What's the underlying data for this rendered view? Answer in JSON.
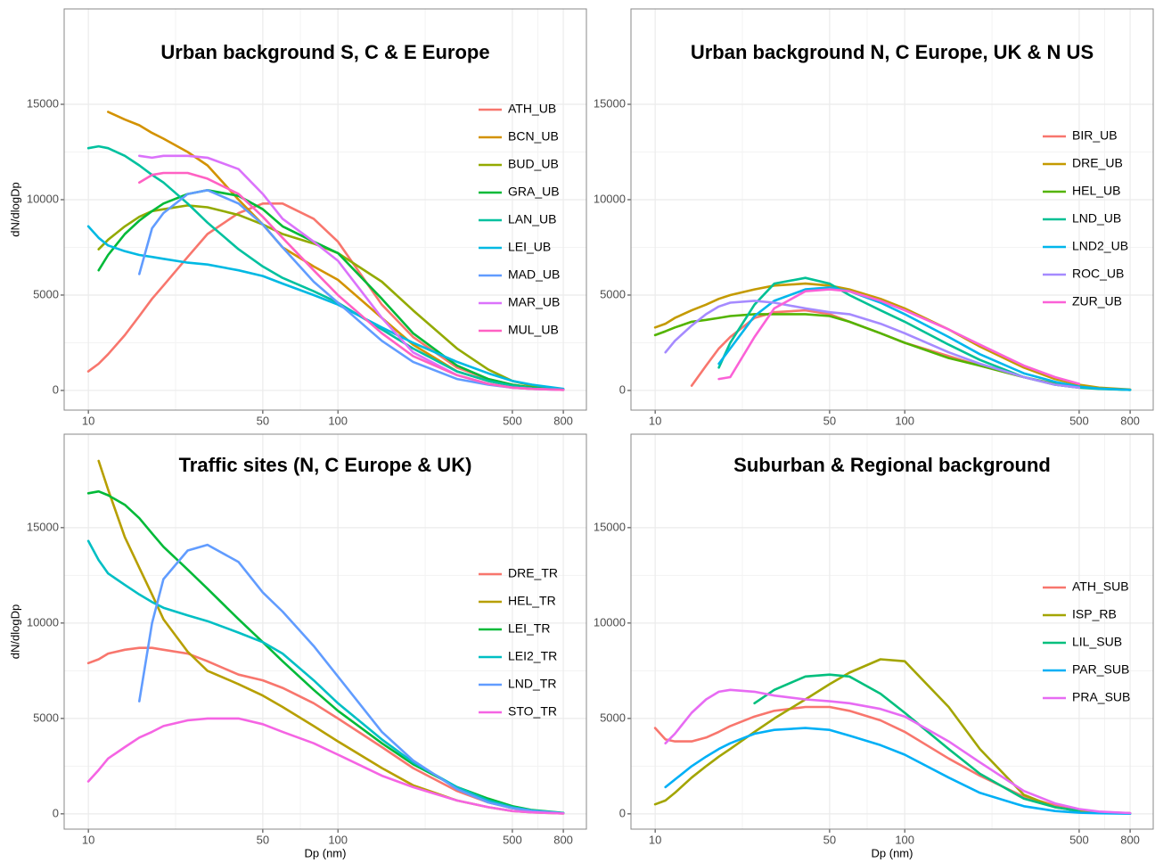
{
  "chart_data": [
    {
      "type": "line",
      "title": "Urban background S, C & E Europe",
      "y_label": "dN/dlogDp",
      "log_x": true,
      "grid": true,
      "legend": "right",
      "xlim": [
        8,
        990
      ],
      "ylim": [
        -1030,
        20000
      ],
      "xticks": [
        10,
        50,
        100,
        500,
        800
      ],
      "yticks": [
        0,
        5000,
        10000,
        15000
      ],
      "x": [
        10,
        11,
        12,
        14,
        16,
        18,
        20,
        25,
        30,
        40,
        50,
        60,
        80,
        100,
        150,
        200,
        300,
        400,
        500,
        600,
        800
      ],
      "series": [
        {
          "name": "ATH_UB",
          "color": "#F8766D",
          "values": [
            1000,
            1400,
            1900,
            2900,
            3900,
            4800,
            5500,
            7000,
            8200,
            9300,
            9800,
            9800,
            9000,
            7800,
            4500,
            2800,
            1200,
            600,
            300,
            150,
            50
          ]
        },
        {
          "name": "BCN_UB",
          "color": "#D39200",
          "values": [
            null,
            null,
            14600,
            14200,
            13900,
            13500,
            13200,
            12500,
            11800,
            10000,
            8700,
            7500,
            6500,
            5800,
            3800,
            2400,
            1000,
            500,
            250,
            120,
            40
          ]
        },
        {
          "name": "BUD_UB",
          "color": "#93AA00",
          "values": [
            null,
            7400,
            7900,
            8600,
            9100,
            9400,
            9500,
            9700,
            9600,
            9200,
            8700,
            8200,
            7700,
            7200,
            5700,
            4200,
            2200,
            1100,
            500,
            250,
            60
          ]
        },
        {
          "name": "GRA_UB",
          "color": "#00BA38",
          "values": [
            null,
            6300,
            7100,
            8200,
            8900,
            9400,
            9800,
            10300,
            10500,
            10200,
            9500,
            8600,
            7800,
            7200,
            4800,
            3000,
            1300,
            600,
            300,
            150,
            40
          ]
        },
        {
          "name": "LAN_UB",
          "color": "#00C19F",
          "values": [
            12700,
            12800,
            12700,
            12300,
            11800,
            11300,
            10900,
            9800,
            8800,
            7400,
            6500,
            5900,
            5200,
            4600,
            3200,
            2200,
            1000,
            500,
            250,
            120,
            40
          ]
        },
        {
          "name": "LEI_UB",
          "color": "#00B9E3",
          "values": [
            8600,
            8000,
            7600,
            7300,
            7100,
            7000,
            6900,
            6700,
            6600,
            6300,
            6000,
            5600,
            5000,
            4500,
            3300,
            2500,
            1500,
            900,
            500,
            300,
            80
          ]
        },
        {
          "name": "MAD_UB",
          "color": "#619CFF",
          "values": [
            null,
            null,
            null,
            null,
            6100,
            8500,
            9300,
            10300,
            10500,
            9800,
            8700,
            7500,
            5700,
            4600,
            2600,
            1500,
            600,
            300,
            150,
            80,
            30
          ]
        },
        {
          "name": "MAR_UB",
          "color": "#DB72FB",
          "values": [
            null,
            null,
            null,
            null,
            12300,
            12200,
            12300,
            12300,
            12200,
            11600,
            10300,
            9000,
            7800,
            6800,
            3800,
            2000,
            800,
            350,
            150,
            80,
            30
          ]
        },
        {
          "name": "MUL_UB",
          "color": "#FF61C3",
          "values": [
            null,
            null,
            null,
            null,
            10900,
            11300,
            11400,
            11400,
            11100,
            10300,
            9100,
            8000,
            6300,
            5000,
            3000,
            1800,
            800,
            350,
            150,
            80,
            30
          ]
        }
      ]
    },
    {
      "type": "line",
      "title": "Urban background N, C Europe, UK & N US",
      "log_x": true,
      "grid": true,
      "legend": "right",
      "xlim": [
        8,
        990
      ],
      "ylim": [
        -1030,
        20000
      ],
      "xticks": [
        10,
        50,
        100,
        500,
        800
      ],
      "yticks": [
        0,
        5000,
        10000,
        15000
      ],
      "x": [
        10,
        11,
        12,
        14,
        16,
        18,
        20,
        25,
        30,
        40,
        50,
        60,
        80,
        100,
        150,
        200,
        300,
        400,
        500,
        600,
        800
      ],
      "series": [
        {
          "name": "BIR_UB",
          "color": "#F8766D",
          "values": [
            null,
            null,
            null,
            250,
            1300,
            2200,
            2800,
            3800,
            4100,
            4200,
            4000,
            3600,
            3000,
            2500,
            1800,
            1300,
            700,
            300,
            150,
            null,
            null
          ]
        },
        {
          "name": "DRE_UB",
          "color": "#C49A00",
          "values": [
            3300,
            3500,
            3800,
            4200,
            4500,
            4800,
            5000,
            5300,
            5500,
            5600,
            5500,
            5300,
            4800,
            4300,
            3200,
            2300,
            1200,
            600,
            300,
            150,
            50
          ]
        },
        {
          "name": "HEL_UB",
          "color": "#53B400",
          "values": [
            2900,
            3100,
            3300,
            3600,
            3700,
            3800,
            3900,
            4000,
            4000,
            4000,
            3900,
            3600,
            3000,
            2500,
            1700,
            1300,
            700,
            350,
            180,
            100,
            30
          ]
        },
        {
          "name": "LND_UB",
          "color": "#00C094",
          "values": [
            null,
            null,
            null,
            null,
            null,
            1200,
            2500,
            4500,
            5600,
            5900,
            5600,
            5000,
            4200,
            3600,
            2400,
            1600,
            700,
            300,
            150,
            80,
            30
          ]
        },
        {
          "name": "LND2_UB",
          "color": "#00B6EB",
          "values": [
            null,
            null,
            null,
            null,
            null,
            1400,
            2200,
            3900,
            4700,
            5300,
            5400,
            5200,
            4600,
            4000,
            2800,
            1900,
            900,
            450,
            200,
            100,
            30
          ]
        },
        {
          "name": "ROC_UB",
          "color": "#A58AFF",
          "values": [
            null,
            2000,
            2600,
            3400,
            4000,
            4400,
            4600,
            4700,
            4600,
            4300,
            4100,
            4000,
            3500,
            3000,
            2000,
            1400,
            700,
            300,
            150,
            null,
            null
          ]
        },
        {
          "name": "ZUR_UB",
          "color": "#FB61D7",
          "values": [
            null,
            null,
            null,
            null,
            null,
            600,
            700,
            2800,
            4300,
            5200,
            5300,
            5200,
            4700,
            4200,
            3200,
            2400,
            1300,
            700,
            350,
            null,
            null
          ]
        }
      ]
    },
    {
      "type": "line",
      "title": "Traffic sites (N, C Europe & UK)",
      "y_label": "dN/dlogDp",
      "x_label": "Dp (nm)",
      "log_x": true,
      "grid": true,
      "legend": "right",
      "xlim": [
        8,
        990
      ],
      "ylim": [
        -800,
        19900
      ],
      "xticks": [
        10,
        50,
        100,
        500,
        800
      ],
      "yticks": [
        0,
        5000,
        10000,
        15000
      ],
      "x": [
        10,
        11,
        12,
        14,
        16,
        18,
        20,
        25,
        30,
        40,
        50,
        60,
        80,
        100,
        150,
        200,
        300,
        400,
        500,
        600,
        800
      ],
      "series": [
        {
          "name": "DRE_TR",
          "color": "#F8766D",
          "values": [
            7900,
            8100,
            8400,
            8600,
            8700,
            8700,
            8600,
            8400,
            8000,
            7300,
            7000,
            6600,
            5800,
            5000,
            3500,
            2400,
            1200,
            600,
            300,
            150,
            30
          ]
        },
        {
          "name": "HEL_TR",
          "color": "#B79F00",
          "values": [
            null,
            18500,
            17000,
            14500,
            12900,
            11500,
            10200,
            8500,
            7500,
            6800,
            6200,
            5600,
            4600,
            3800,
            2400,
            1500,
            700,
            350,
            150,
            80,
            20
          ]
        },
        {
          "name": "LEI_TR",
          "color": "#00BA38",
          "values": [
            16800,
            16900,
            16700,
            16200,
            15500,
            14700,
            14000,
            12800,
            11800,
            10200,
            9000,
            8000,
            6500,
            5400,
            3700,
            2600,
            1400,
            800,
            400,
            200,
            50
          ]
        },
        {
          "name": "LEI2_TR",
          "color": "#00BFC4",
          "values": [
            14300,
            13300,
            12600,
            12000,
            11500,
            11100,
            10800,
            10400,
            10100,
            9500,
            9000,
            8400,
            7000,
            5800,
            3900,
            2700,
            1400,
            700,
            350,
            180,
            40
          ]
        },
        {
          "name": "LND_TR",
          "color": "#619CFF",
          "values": [
            null,
            null,
            null,
            null,
            5900,
            10000,
            12300,
            13800,
            14100,
            13200,
            11600,
            10600,
            8800,
            7200,
            4300,
            2800,
            1300,
            600,
            300,
            150,
            30
          ]
        },
        {
          "name": "STO_TR",
          "color": "#F564E3",
          "values": [
            1700,
            2300,
            2900,
            3500,
            4000,
            4300,
            4600,
            4900,
            5000,
            5000,
            4700,
            4300,
            3700,
            3100,
            2000,
            1400,
            700,
            350,
            150,
            80,
            20
          ]
        }
      ]
    },
    {
      "type": "line",
      "title": "Suburban & Regional background",
      "x_label": "Dp (nm)",
      "log_x": true,
      "grid": true,
      "legend": "right",
      "xlim": [
        8,
        990
      ],
      "ylim": [
        -800,
        19900
      ],
      "xticks": [
        10,
        50,
        100,
        500,
        800
      ],
      "yticks": [
        0,
        5000,
        10000,
        15000
      ],
      "x": [
        10,
        11,
        12,
        14,
        16,
        18,
        20,
        25,
        30,
        40,
        50,
        60,
        80,
        100,
        150,
        200,
        300,
        400,
        500,
        600,
        800
      ],
      "series": [
        {
          "name": "ATH_SUB",
          "color": "#F8766D",
          "values": [
            4500,
            3900,
            3800,
            3800,
            4000,
            4300,
            4600,
            5100,
            5400,
            5600,
            5600,
            5400,
            4900,
            4300,
            2900,
            2000,
            900,
            450,
            200,
            100,
            30
          ]
        },
        {
          "name": "ISP_RB",
          "color": "#A3A500",
          "values": [
            500,
            700,
            1100,
            1900,
            2500,
            3000,
            3400,
            4300,
            5000,
            6000,
            6800,
            7400,
            8100,
            8000,
            5600,
            3400,
            1000,
            350,
            150,
            80,
            30
          ]
        },
        {
          "name": "LIL_SUB",
          "color": "#00BF7D",
          "values": [
            null,
            null,
            null,
            null,
            null,
            null,
            null,
            5800,
            6500,
            7200,
            7300,
            7200,
            6300,
            5300,
            3400,
            2100,
            800,
            350,
            150,
            null,
            null
          ]
        },
        {
          "name": "PAR_SUB",
          "color": "#00B0F6",
          "values": [
            null,
            1400,
            1800,
            2500,
            3000,
            3400,
            3700,
            4200,
            4400,
            4500,
            4400,
            4100,
            3600,
            3100,
            1900,
            1100,
            400,
            150,
            60,
            30,
            10
          ]
        },
        {
          "name": "PRA_SUB",
          "color": "#E76BF3",
          "values": [
            null,
            3700,
            4200,
            5300,
            6000,
            6400,
            6500,
            6400,
            6200,
            6000,
            5900,
            5800,
            5500,
            5100,
            3800,
            2700,
            1200,
            550,
            250,
            120,
            40
          ]
        }
      ]
    }
  ]
}
